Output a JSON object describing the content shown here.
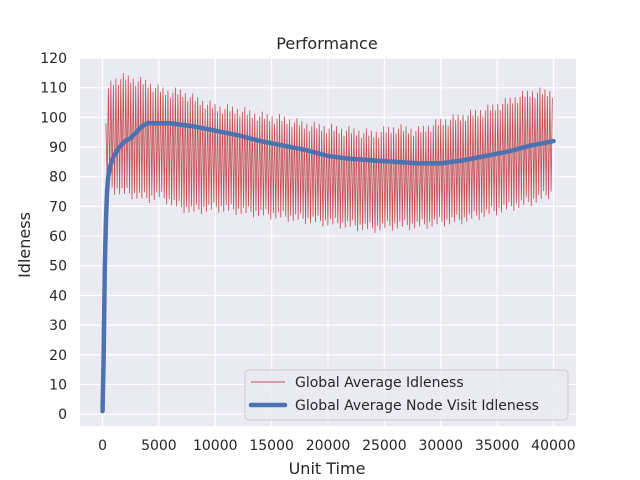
{
  "chart_data": {
    "type": "line",
    "title": "Performance",
    "xlabel": "Unit Time",
    "ylabel": "Idleness",
    "xlim": [
      -2000,
      42000
    ],
    "ylim": [
      -4,
      120
    ],
    "xticks": [
      0,
      5000,
      10000,
      15000,
      20000,
      25000,
      30000,
      35000,
      40000
    ],
    "yticks": [
      0,
      10,
      20,
      30,
      40,
      50,
      60,
      70,
      80,
      90,
      100,
      110,
      120
    ],
    "grid": true,
    "legend_position": "lower-right",
    "series": [
      {
        "name": "Global Average Idleness",
        "color": "#c44e52",
        "style": "thin-oscillating",
        "upper_envelope": [
          [
            300,
            98
          ],
          [
            500,
            112
          ],
          [
            1000,
            114
          ],
          [
            2000,
            115
          ],
          [
            3000,
            114
          ],
          [
            4000,
            113
          ],
          [
            5000,
            111
          ],
          [
            6000,
            110
          ],
          [
            7000,
            110
          ],
          [
            8000,
            108
          ],
          [
            10000,
            105
          ],
          [
            12000,
            104
          ],
          [
            14000,
            102
          ],
          [
            16000,
            101
          ],
          [
            18000,
            99
          ],
          [
            20000,
            98
          ],
          [
            22000,
            97
          ],
          [
            24000,
            96
          ],
          [
            26000,
            98
          ],
          [
            28000,
            97
          ],
          [
            30000,
            100
          ],
          [
            32000,
            102
          ],
          [
            34000,
            104
          ],
          [
            36000,
            107
          ],
          [
            38000,
            110
          ],
          [
            40000,
            110
          ]
        ],
        "lower_envelope": [
          [
            300,
            78
          ],
          [
            500,
            76
          ],
          [
            1000,
            74
          ],
          [
            2000,
            73
          ],
          [
            3000,
            72
          ],
          [
            4000,
            71
          ],
          [
            5000,
            72
          ],
          [
            6000,
            70
          ],
          [
            7000,
            68
          ],
          [
            8000,
            67
          ],
          [
            10000,
            68
          ],
          [
            12000,
            67
          ],
          [
            14000,
            66
          ],
          [
            16000,
            65
          ],
          [
            18000,
            64
          ],
          [
            20000,
            63
          ],
          [
            22000,
            62
          ],
          [
            24000,
            61
          ],
          [
            26000,
            62
          ],
          [
            28000,
            62
          ],
          [
            30000,
            63
          ],
          [
            32000,
            64
          ],
          [
            34000,
            66
          ],
          [
            36000,
            68
          ],
          [
            38000,
            70
          ],
          [
            40000,
            73
          ]
        ]
      },
      {
        "name": "Global Average Node Visit Idleness",
        "color": "#4c72b0",
        "style": "thick",
        "points": [
          [
            0,
            1
          ],
          [
            100,
            20
          ],
          [
            200,
            50
          ],
          [
            300,
            65
          ],
          [
            400,
            75
          ],
          [
            500,
            80
          ],
          [
            700,
            84
          ],
          [
            1000,
            87
          ],
          [
            1500,
            90
          ],
          [
            2000,
            92
          ],
          [
            2500,
            93
          ],
          [
            3000,
            95
          ],
          [
            3500,
            97
          ],
          [
            4000,
            98
          ],
          [
            5000,
            98
          ],
          [
            6000,
            98
          ],
          [
            7000,
            97.5
          ],
          [
            8000,
            97
          ],
          [
            10000,
            95.5
          ],
          [
            12000,
            94
          ],
          [
            14000,
            92
          ],
          [
            16000,
            90.5
          ],
          [
            18000,
            89
          ],
          [
            20000,
            87
          ],
          [
            22000,
            86
          ],
          [
            24000,
            85.5
          ],
          [
            26000,
            85
          ],
          [
            28000,
            84.5
          ],
          [
            30000,
            84.5
          ],
          [
            32000,
            85.5
          ],
          [
            34000,
            87
          ],
          [
            36000,
            88.5
          ],
          [
            38000,
            90.5
          ],
          [
            40000,
            92
          ]
        ]
      }
    ]
  }
}
